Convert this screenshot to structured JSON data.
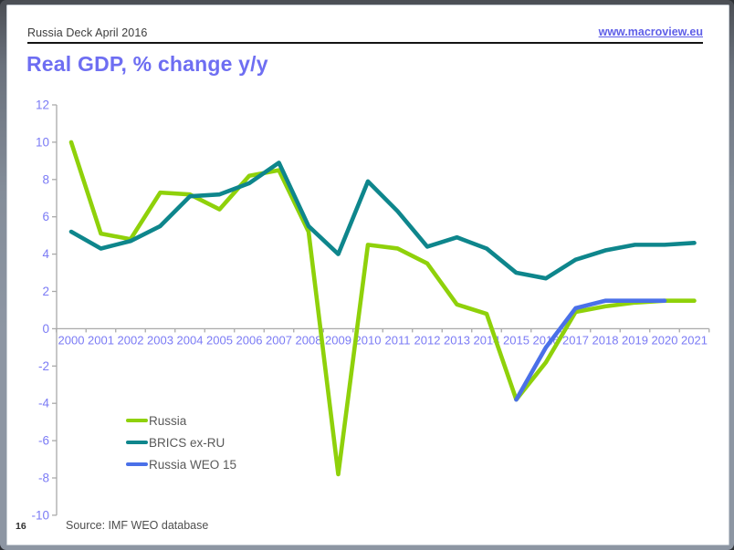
{
  "header": {
    "left_text": "Russia Deck April 2016",
    "link_text": "www.macroview.eu"
  },
  "title": "Real GDP, % change y/y",
  "source_note": "Source: IMF WEO database",
  "page_number": "16",
  "colors": {
    "title": "#6e6ef2",
    "link": "#5f5fe8",
    "axis_labels": "#7b7bf5",
    "axis_line": "#a9a9a9",
    "legend_text": "#595959"
  },
  "chart_data": {
    "type": "line",
    "title": "Real GDP, % change y/y",
    "xlabel": "",
    "ylabel": "",
    "x": [
      2000,
      2001,
      2002,
      2003,
      2004,
      2005,
      2006,
      2007,
      2008,
      2009,
      2010,
      2011,
      2012,
      2013,
      2014,
      2015,
      2016,
      2017,
      2018,
      2019,
      2020,
      2021
    ],
    "series": [
      {
        "name": "Russia",
        "color": "#8fd10a",
        "values": [
          10.0,
          5.1,
          4.8,
          7.3,
          7.2,
          6.4,
          8.2,
          8.5,
          5.2,
          -7.8,
          4.5,
          4.3,
          3.5,
          1.3,
          0.8,
          -3.8,
          -1.8,
          0.9,
          1.2,
          1.4,
          1.5,
          1.5
        ]
      },
      {
        "name": "BRICS ex-RU",
        "color": "#0e868c",
        "values": [
          5.2,
          4.3,
          4.7,
          5.5,
          7.1,
          7.2,
          7.8,
          8.9,
          5.5,
          4.0,
          7.9,
          6.3,
          4.4,
          4.9,
          4.3,
          3.0,
          2.7,
          3.7,
          4.2,
          4.5,
          4.5,
          4.6
        ]
      },
      {
        "name": "Russia WEO 15",
        "color": "#4a70e8",
        "values": [
          null,
          null,
          null,
          null,
          null,
          null,
          null,
          null,
          null,
          null,
          null,
          null,
          null,
          null,
          null,
          -3.8,
          -1.0,
          1.1,
          1.5,
          1.5,
          1.5,
          null
        ]
      }
    ],
    "ylim": [
      -10,
      12
    ],
    "ytick_step": 2,
    "grid": false,
    "legend_position": "inside-bottom-left",
    "legend_entries": [
      "Russia",
      "BRICS ex-RU",
      "Russia WEO 15"
    ]
  }
}
